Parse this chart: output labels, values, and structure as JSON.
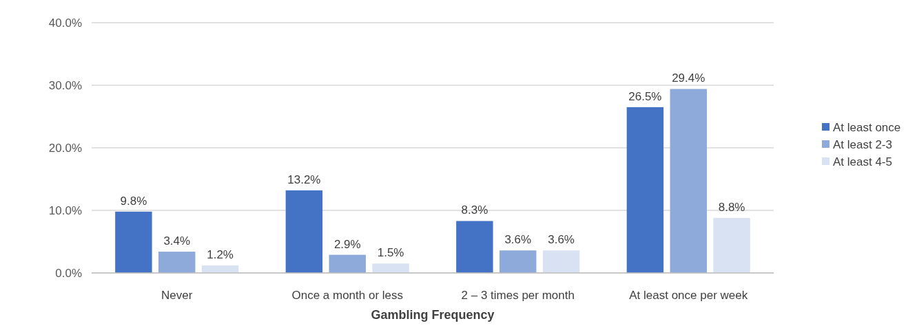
{
  "chart_data": {
    "type": "bar",
    "xlabel": "Gambling Frequency",
    "categories": [
      "Never",
      "Once a month or less",
      "2 – 3 times per month",
      "At least once per week"
    ],
    "series": [
      {
        "name": "At least once",
        "color": "#4472c4",
        "values": [
          9.8,
          13.2,
          8.3,
          26.5
        ],
        "value_labels": [
          "9.8%",
          "13.2%",
          "8.3%",
          "26.5%"
        ]
      },
      {
        "name": "At least 2-3",
        "color": "#8eaadb",
        "values": [
          3.4,
          2.9,
          3.6,
          29.4
        ],
        "value_labels": [
          "3.4%",
          "2.9%",
          "3.6%",
          "29.4%"
        ]
      },
      {
        "name": "At least 4-5",
        "color": "#d9e2f3",
        "values": [
          1.2,
          1.5,
          3.6,
          8.8
        ],
        "value_labels": [
          "1.2%",
          "1.5%",
          "3.6%",
          "8.8%"
        ]
      }
    ],
    "ylim": [
      0,
      40
    ],
    "yticks": [
      {
        "value": 0,
        "label": "0.0%"
      },
      {
        "value": 10,
        "label": "10.0%"
      },
      {
        "value": 20,
        "label": "20.0%"
      },
      {
        "value": 30,
        "label": "30.0%"
      },
      {
        "value": 40,
        "label": "40.0%"
      }
    ],
    "grid": "y",
    "legend": "right"
  }
}
